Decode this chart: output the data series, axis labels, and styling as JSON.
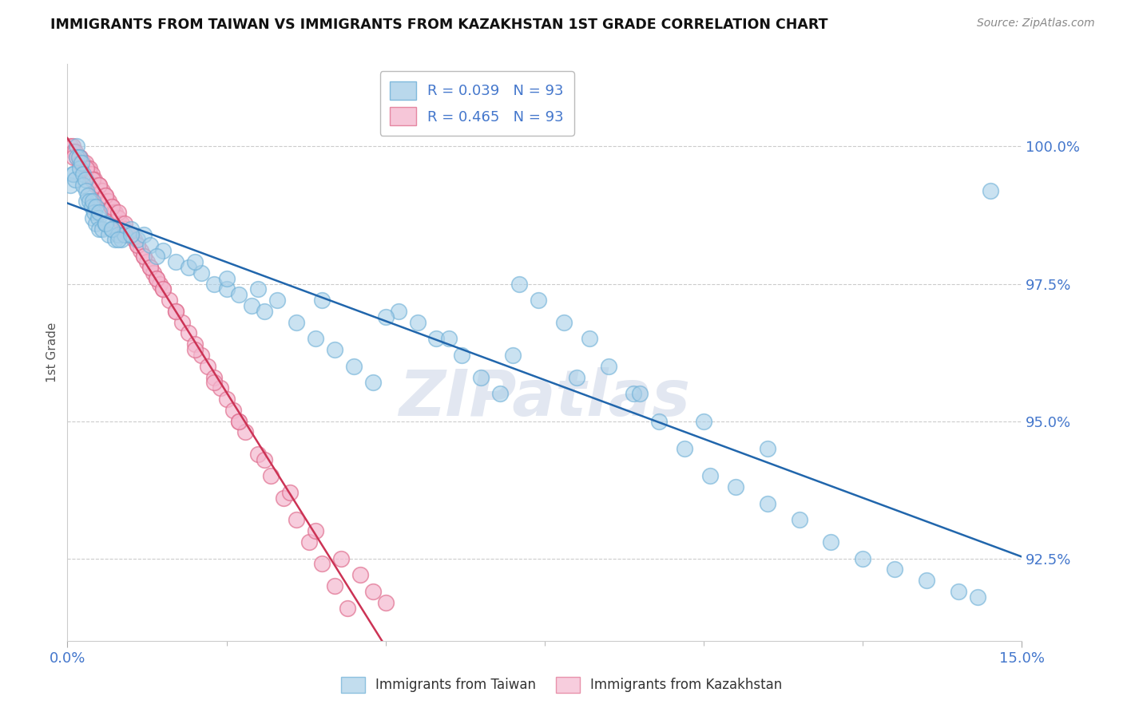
{
  "title": "IMMIGRANTS FROM TAIWAN VS IMMIGRANTS FROM KAZAKHSTAN 1ST GRADE CORRELATION CHART",
  "source": "Source: ZipAtlas.com",
  "ylabel": "1st Grade",
  "y_ticks": [
    92.5,
    95.0,
    97.5,
    100.0
  ],
  "x_range": [
    0.0,
    15.0
  ],
  "y_range": [
    91.0,
    101.5
  ],
  "legend1_text": "R = 0.039   N = 93",
  "legend2_text": "R = 0.465   N = 93",
  "legend_label1": "Immigrants from Taiwan",
  "legend_label2": "Immigrants from Kazakhstan",
  "blue_color": "#a8cfe8",
  "blue_edge_color": "#6aaed6",
  "pink_color": "#f4b8cf",
  "pink_edge_color": "#e07090",
  "blue_line_color": "#2166ac",
  "pink_line_color": "#cc3355",
  "tick_color": "#4477cc",
  "watermark_color": "#d0d8e8",
  "background_color": "#ffffff",
  "grid_color": "#cccccc",
  "taiwan_x": [
    0.05,
    0.08,
    0.1,
    0.12,
    0.15,
    0.15,
    0.18,
    0.2,
    0.22,
    0.25,
    0.25,
    0.28,
    0.3,
    0.3,
    0.32,
    0.35,
    0.38,
    0.4,
    0.4,
    0.42,
    0.45,
    0.45,
    0.48,
    0.5,
    0.5,
    0.55,
    0.6,
    0.65,
    0.7,
    0.75,
    0.8,
    0.85,
    0.9,
    1.0,
    1.1,
    1.2,
    1.3,
    1.5,
    1.7,
    1.9,
    2.1,
    2.3,
    2.5,
    2.7,
    2.9,
    3.1,
    3.3,
    3.6,
    3.9,
    4.2,
    4.5,
    4.8,
    5.2,
    5.5,
    5.8,
    6.2,
    6.5,
    6.8,
    7.1,
    7.4,
    7.8,
    8.2,
    8.5,
    8.9,
    9.3,
    9.7,
    10.1,
    10.5,
    11.0,
    11.5,
    12.0,
    12.5,
    13.0,
    13.5,
    14.0,
    14.3,
    0.6,
    0.7,
    0.8,
    1.0,
    1.4,
    2.0,
    2.5,
    3.0,
    4.0,
    5.0,
    6.0,
    7.0,
    8.0,
    9.0,
    10.0,
    11.0,
    14.5
  ],
  "taiwan_y": [
    99.3,
    99.5,
    99.5,
    99.4,
    100.0,
    99.8,
    99.8,
    99.6,
    99.7,
    99.5,
    99.3,
    99.4,
    99.2,
    99.0,
    99.1,
    99.0,
    98.9,
    98.7,
    99.0,
    98.8,
    98.9,
    98.6,
    98.7,
    98.5,
    98.8,
    98.5,
    98.6,
    98.4,
    98.5,
    98.3,
    98.4,
    98.3,
    98.4,
    98.5,
    98.3,
    98.4,
    98.2,
    98.1,
    97.9,
    97.8,
    97.7,
    97.5,
    97.4,
    97.3,
    97.1,
    97.0,
    97.2,
    96.8,
    96.5,
    96.3,
    96.0,
    95.7,
    97.0,
    96.8,
    96.5,
    96.2,
    95.8,
    95.5,
    97.5,
    97.2,
    96.8,
    96.5,
    96.0,
    95.5,
    95.0,
    94.5,
    94.0,
    93.8,
    93.5,
    93.2,
    92.8,
    92.5,
    92.3,
    92.1,
    91.9,
    91.8,
    98.6,
    98.5,
    98.3,
    98.4,
    98.0,
    97.9,
    97.6,
    97.4,
    97.2,
    96.9,
    96.5,
    96.2,
    95.8,
    95.5,
    95.0,
    94.5,
    99.2
  ],
  "kaz_x": [
    0.05,
    0.08,
    0.1,
    0.12,
    0.15,
    0.18,
    0.2,
    0.22,
    0.25,
    0.28,
    0.3,
    0.32,
    0.35,
    0.35,
    0.38,
    0.4,
    0.42,
    0.45,
    0.48,
    0.5,
    0.52,
    0.55,
    0.58,
    0.6,
    0.62,
    0.65,
    0.68,
    0.7,
    0.72,
    0.75,
    0.78,
    0.8,
    0.85,
    0.9,
    0.95,
    1.0,
    1.05,
    1.1,
    1.15,
    1.2,
    1.25,
    1.3,
    1.35,
    1.4,
    1.45,
    1.5,
    1.6,
    1.7,
    1.8,
    1.9,
    2.0,
    2.1,
    2.2,
    2.3,
    2.4,
    2.5,
    2.6,
    2.7,
    2.8,
    3.0,
    3.2,
    3.4,
    3.6,
    3.8,
    4.0,
    4.2,
    4.4,
    0.1,
    0.2,
    0.3,
    0.4,
    0.5,
    0.6,
    0.7,
    0.8,
    0.9,
    1.0,
    1.1,
    1.2,
    1.3,
    1.4,
    1.5,
    1.7,
    2.0,
    2.3,
    2.7,
    3.1,
    3.5,
    3.9,
    4.3,
    4.6,
    4.8,
    5.0
  ],
  "kaz_y": [
    100.0,
    100.0,
    99.9,
    99.9,
    99.8,
    99.8,
    99.8,
    99.7,
    99.7,
    99.7,
    99.6,
    99.6,
    99.6,
    99.5,
    99.5,
    99.4,
    99.4,
    99.3,
    99.3,
    99.3,
    99.2,
    99.2,
    99.1,
    99.1,
    99.0,
    99.0,
    98.9,
    98.9,
    98.8,
    98.8,
    98.7,
    98.7,
    98.6,
    98.5,
    98.4,
    98.4,
    98.3,
    98.2,
    98.1,
    98.0,
    97.9,
    97.8,
    97.7,
    97.6,
    97.5,
    97.4,
    97.2,
    97.0,
    96.8,
    96.6,
    96.4,
    96.2,
    96.0,
    95.8,
    95.6,
    95.4,
    95.2,
    95.0,
    94.8,
    94.4,
    94.0,
    93.6,
    93.2,
    92.8,
    92.4,
    92.0,
    91.6,
    99.8,
    99.7,
    99.6,
    99.4,
    99.3,
    99.1,
    98.9,
    98.8,
    98.6,
    98.4,
    98.2,
    98.0,
    97.8,
    97.6,
    97.4,
    97.0,
    96.3,
    95.7,
    95.0,
    94.3,
    93.7,
    93.0,
    92.5,
    92.2,
    91.9,
    91.7
  ]
}
